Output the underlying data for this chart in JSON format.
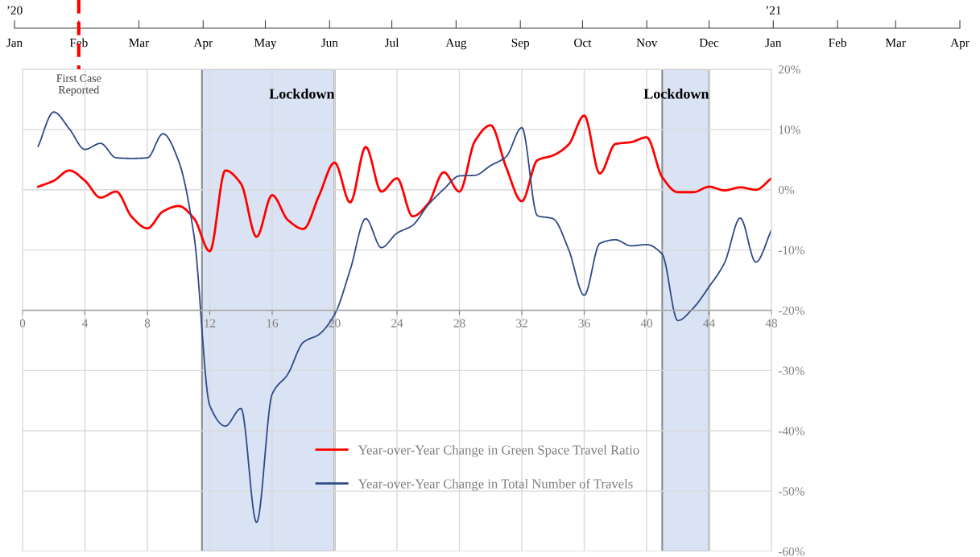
{
  "chart_data": {
    "type": "line",
    "x": [
      1,
      2,
      3,
      4,
      5,
      6,
      7,
      8,
      9,
      10,
      11,
      12,
      13,
      14,
      15,
      16,
      17,
      18,
      19,
      20,
      21,
      22,
      23,
      24,
      25,
      26,
      27,
      28,
      29,
      30,
      31,
      32,
      33,
      34,
      35,
      36,
      37,
      38,
      39,
      40,
      41,
      42,
      43,
      44,
      45,
      46,
      47,
      48
    ],
    "series": [
      {
        "name": "Year-over-Year Change in Green Space Travel Ratio",
        "color": "#ff0000",
        "values": [
          0.5,
          1.5,
          3.2,
          1.5,
          -1.3,
          -0.3,
          -4.5,
          -6.4,
          -3.6,
          -2.7,
          -4.8,
          -10.2,
          3.2,
          1.0,
          -7.8,
          -0.9,
          -5.0,
          -6.5,
          -1.0,
          4.5,
          -2.1,
          7.1,
          -0.3,
          1.9,
          -4.4,
          -2.3,
          2.9,
          -0.3,
          8.1,
          10.7,
          3.7,
          -1.9,
          4.9,
          5.7,
          7.5,
          12.3,
          2.7,
          7.6,
          7.9,
          8.7,
          2.1,
          -0.4,
          -0.4,
          0.5,
          -0.1,
          0.4,
          0.0,
          1.9
        ]
      },
      {
        "name": "Year-over-Year Change in Total Number of Travels",
        "color": "#2f4a88",
        "values": [
          7.2,
          12.9,
          10.1,
          6.7,
          7.7,
          5.3,
          5.2,
          5.3,
          9.3,
          4.8,
          -7.8,
          -35.8,
          -39.2,
          -36.3,
          -55.2,
          -33.9,
          -30.6,
          -25.3,
          -24.0,
          -20.7,
          -13.3,
          -4.8,
          -9.6,
          -7.2,
          -5.9,
          -2.5,
          0.1,
          2.3,
          2.4,
          4.0,
          5.5,
          10.3,
          -4.3,
          -4.8,
          -9.9,
          -17.5,
          -8.9,
          -8.3,
          -9.3,
          -9.1,
          -10.7,
          -21.7,
          -19.6,
          -16.1,
          -12.1,
          -4.7,
          -12.0,
          -6.7
        ]
      }
    ],
    "xlim": [
      0,
      48
    ],
    "xticks": [
      0,
      4,
      8,
      12,
      16,
      20,
      24,
      28,
      32,
      36,
      40,
      44,
      48
    ],
    "ylim": [
      -60,
      20
    ],
    "yticks": [
      {
        "value": 20,
        "label": "20%"
      },
      {
        "value": 10,
        "label": "10%"
      },
      {
        "value": 0,
        "label": "0%"
      },
      {
        "value": -10,
        "label": "-10%"
      },
      {
        "value": -20,
        "label": "-20%"
      },
      {
        "value": -30,
        "label": "-30%"
      },
      {
        "value": -40,
        "label": "-40%"
      },
      {
        "value": -50,
        "label": "-50%"
      },
      {
        "value": -60,
        "label": "-60%"
      }
    ],
    "x2lim": [
      "2020-01-01",
      "2021-04-01"
    ],
    "x2ticks": [
      {
        "value": "2020-01-01",
        "label": "Jan"
      },
      {
        "value": "2020-02-01",
        "label": "Feb"
      },
      {
        "value": "2020-03-01",
        "label": "Mar"
      },
      {
        "value": "2020-04-01",
        "label": "Apr"
      },
      {
        "value": "2020-05-01",
        "label": "May"
      },
      {
        "value": "2020-06-01",
        "label": "Jun"
      },
      {
        "value": "2020-07-01",
        "label": "Jul"
      },
      {
        "value": "2020-08-01",
        "label": "Aug"
      },
      {
        "value": "2020-09-01",
        "label": "Sep"
      },
      {
        "value": "2020-10-01",
        "label": "Oct"
      },
      {
        "value": "2020-11-01",
        "label": "Nov"
      },
      {
        "value": "2020-12-01",
        "label": "Dec"
      },
      {
        "value": "2021-01-01",
        "label": "Jan"
      },
      {
        "value": "2021-02-01",
        "label": "Feb"
      },
      {
        "value": "2021-03-01",
        "label": "Mar"
      },
      {
        "value": "2021-04-01",
        "label": "Apr"
      }
    ],
    "annotations": [
      "’20",
      "’21"
    ],
    "bands": [
      {
        "axis": "x",
        "from": 11.5,
        "to": 20,
        "label": "Lockdown",
        "color": "#dae3f3"
      },
      {
        "axis": "x",
        "from": 41,
        "to": 44,
        "label": "Lockdown",
        "color": "#dae3f3"
      }
    ],
    "ref_lines": [
      {
        "axis": "x2",
        "value": "2020-02-01",
        "label": "First Case\nReported",
        "color": "#ff0000",
        "line_style": "dashed"
      }
    ],
    "grid": true,
    "legend": "bottom right"
  }
}
